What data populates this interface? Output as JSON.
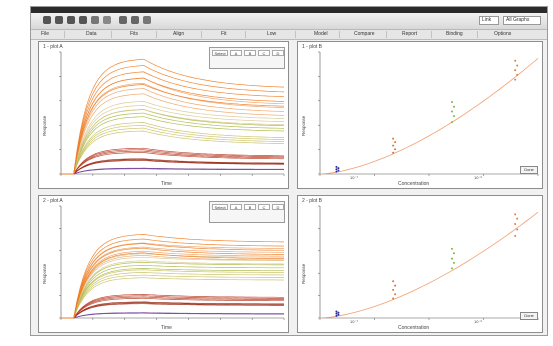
{
  "toolbar": {
    "tools": [
      "open-icon",
      "save-icon",
      "print-icon",
      "copy-icon",
      "paste-icon",
      "settings-icon",
      "pen-icon",
      "zoom-icon",
      "cursor-icon"
    ],
    "field_a": "Link",
    "field_b": "All Graphs"
  },
  "tabs": [
    "File",
    "Data",
    "Fits",
    "Align",
    "Fit",
    "Low",
    "Model",
    "Compare",
    "Report",
    "Binding",
    "Options"
  ],
  "panels": {
    "top_left": {
      "label": "1 - plot A",
      "ylabel": "Response",
      "xlabel": "Time",
      "legend_buttons": [
        "Select",
        "A",
        "B",
        "C",
        "D"
      ]
    },
    "top_right": {
      "label": "1 - plot B",
      "ylabel": "Response",
      "xlabel": "Concentration",
      "button": "Done",
      "xticks": [
        "10⁻⁷",
        "10⁻⁶"
      ]
    },
    "bottom_left": {
      "label": "2 - plot A",
      "ylabel": "Response",
      "xlabel": "Time",
      "legend_buttons": [
        "Select",
        "A",
        "B",
        "C",
        "D"
      ]
    },
    "bottom_right": {
      "label": "2 - plot B",
      "ylabel": "Response",
      "xlabel": "Concentration",
      "button": "Done",
      "xticks": [
        "10⁻⁷",
        "10⁻⁶"
      ]
    }
  },
  "colors": {
    "tiers": [
      "#7a4aa0",
      "#9a2510",
      "#b83a22",
      "#c9c060",
      "#a8b840",
      "#d8c890",
      "#f0a060",
      "#f07a20"
    ],
    "fit": "#f0a070",
    "groups": [
      "#2a2aa0",
      "#e07040",
      "#7ab840",
      "#e08040"
    ]
  },
  "chart_data": [
    {
      "type": "line",
      "title": "",
      "xlabel": "Time",
      "ylabel": "Response",
      "xlim": [
        0,
        700
      ],
      "x_ticks": [
        0,
        100,
        200,
        300,
        400,
        500,
        600,
        700
      ],
      "association_end": 260,
      "series": [
        {
          "tier": 0,
          "plateau": 0.05,
          "end": 0.04,
          "count": 3
        },
        {
          "tier": 1,
          "plateau": 0.13,
          "end": 0.09,
          "count": 3
        },
        {
          "tier": 2,
          "plateau": 0.22,
          "end": 0.15,
          "count": 4
        },
        {
          "tier": 3,
          "plateau": 0.44,
          "end": 0.3,
          "count": 4
        },
        {
          "tier": 4,
          "plateau": 0.55,
          "end": 0.4,
          "count": 3
        },
        {
          "tier": 5,
          "plateau": 0.62,
          "end": 0.46,
          "count": 3
        },
        {
          "tier": 6,
          "plateau": 0.82,
          "end": 0.58,
          "count": 4
        },
        {
          "tier": 7,
          "plateau": 0.98,
          "end": 0.72,
          "count": 5
        }
      ]
    },
    {
      "type": "scatter",
      "title": "",
      "xlabel": "Concentration",
      "ylabel": "Response",
      "x_scale": "log",
      "groups": [
        {
          "x": 0.08,
          "values": [
            0.02,
            0.03,
            0.04,
            0.05,
            0.06
          ]
        },
        {
          "x": 0.34,
          "values": [
            0.18,
            0.21,
            0.24,
            0.27,
            0.3
          ]
        },
        {
          "x": 0.61,
          "values": [
            0.44,
            0.49,
            0.53,
            0.57,
            0.61
          ]
        },
        {
          "x": 0.9,
          "values": [
            0.8,
            0.84,
            0.88,
            0.92,
            0.96
          ]
        }
      ],
      "fit": [
        [
          0.0,
          0.0
        ],
        [
          0.25,
          0.12
        ],
        [
          0.5,
          0.34
        ],
        [
          0.75,
          0.64
        ],
        [
          1.0,
          0.98
        ]
      ]
    },
    {
      "type": "line",
      "title": "",
      "xlabel": "Time",
      "ylabel": "Response",
      "xlim": [
        0,
        700
      ],
      "x_ticks": [
        0,
        100,
        200,
        300,
        400,
        500,
        600,
        700
      ],
      "association_end": 260,
      "series": [
        {
          "tier": 0,
          "plateau": 0.05,
          "end": 0.04,
          "count": 3
        },
        {
          "tier": 1,
          "plateau": 0.15,
          "end": 0.13,
          "count": 3
        },
        {
          "tier": 2,
          "plateau": 0.22,
          "end": 0.19,
          "count": 4
        },
        {
          "tier": 3,
          "plateau": 0.45,
          "end": 0.42,
          "count": 4
        },
        {
          "tier": 4,
          "plateau": 0.52,
          "end": 0.49,
          "count": 3
        },
        {
          "tier": 5,
          "plateau": 0.6,
          "end": 0.56,
          "count": 3
        },
        {
          "tier": 6,
          "plateau": 0.7,
          "end": 0.64,
          "count": 4
        },
        {
          "tier": 7,
          "plateau": 0.78,
          "end": 0.7,
          "count": 5
        }
      ]
    },
    {
      "type": "scatter",
      "title": "",
      "xlabel": "Concentration",
      "ylabel": "Response",
      "x_scale": "log",
      "groups": [
        {
          "x": 0.08,
          "values": [
            0.02,
            0.03,
            0.04,
            0.05,
            0.06
          ]
        },
        {
          "x": 0.34,
          "values": [
            0.18,
            0.22,
            0.26,
            0.3,
            0.34
          ]
        },
        {
          "x": 0.61,
          "values": [
            0.46,
            0.51,
            0.55,
            0.6,
            0.64
          ]
        },
        {
          "x": 0.9,
          "values": [
            0.76,
            0.82,
            0.87,
            0.92,
            0.96
          ]
        }
      ],
      "fit": [
        [
          0.0,
          0.0
        ],
        [
          0.25,
          0.13
        ],
        [
          0.5,
          0.36
        ],
        [
          0.75,
          0.66
        ],
        [
          1.0,
          0.98
        ]
      ]
    }
  ]
}
